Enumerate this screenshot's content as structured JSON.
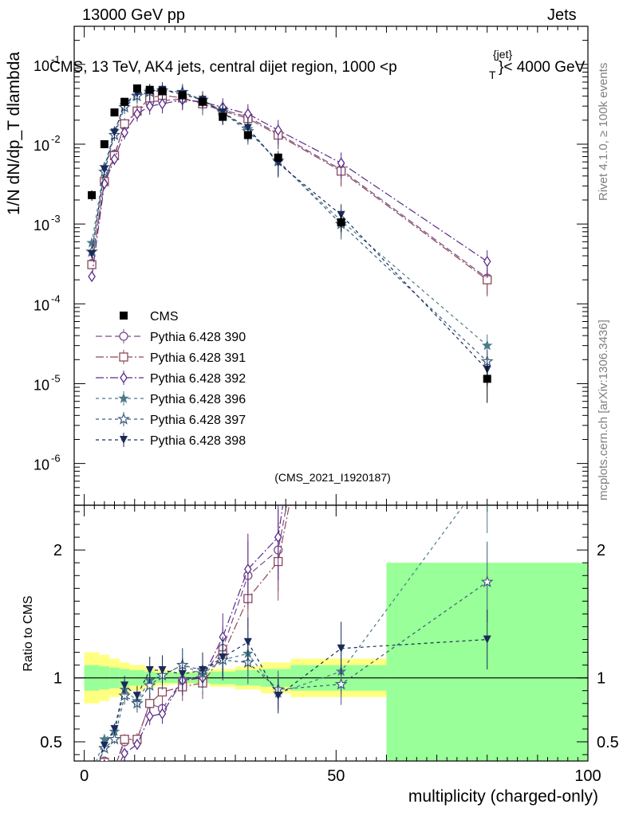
{
  "header": {
    "left": "13000 GeV pp",
    "right": "Jets"
  },
  "side_labels": {
    "rivet": "Rivet 4.1.0, ≥ 100k events",
    "mcplots": "mcplots.cern.ch [arXiv:1306.3436]"
  },
  "chart_data": {
    "type": "scatter",
    "title": "CMS, 13 TeV, AK4 jets, central dijet region, 1000 <p",
    "title_super": "{jet}",
    "title_sub": "T",
    "title_end": "}< 4000 GeV",
    "analysis_id": "(CMS_2021_I1920187)",
    "xlabel": "multiplicity (charged-only)",
    "ylabel_main": "1/N dN/dp_T dlambda",
    "ylabel_ratio": "Ratio to CMS",
    "xlim": [
      -2,
      100
    ],
    "x_ticks": [
      "0",
      "50",
      "100"
    ],
    "ylim_main": [
      3e-07,
      0.3
    ],
    "y_ticks_main": [
      "10^-6",
      "10^-5",
      "10^-4",
      "10^-3",
      "10^-2",
      "10^-1"
    ],
    "ylim_ratio": [
      0.35,
      2.35
    ],
    "y_ticks_ratio": [
      "0.5",
      "1",
      "2"
    ],
    "data": {
      "name": "CMS",
      "x": [
        1.5,
        4,
        6,
        8,
        10.5,
        13,
        15.5,
        19.5,
        23.5,
        27.5,
        32.5,
        38.5,
        51,
        80
      ],
      "y": [
        0.0023,
        0.01,
        0.025,
        0.034,
        0.05,
        0.048,
        0.046,
        0.041,
        0.034,
        0.022,
        0.013,
        0.0068,
        0.00105,
        1.15e-05
      ],
      "yerr_rel": [
        0.15,
        0.1,
        0.08,
        0.07,
        0.06,
        0.05,
        0.05,
        0.05,
        0.06,
        0.07,
        0.08,
        0.12,
        0.25,
        0.5
      ],
      "band_x_edges": [
        0,
        3,
        5,
        7,
        9,
        12,
        14,
        17,
        22,
        25,
        30,
        35,
        41,
        60,
        100
      ],
      "band_yellow_half": [
        0.2,
        0.18,
        0.15,
        0.12,
        0.1,
        0.08,
        0.06,
        0.05,
        0.05,
        0.07,
        0.09,
        0.12,
        0.15,
        0.9
      ],
      "band_green_half": [
        0.1,
        0.09,
        0.08,
        0.07,
        0.06,
        0.05,
        0.04,
        0.04,
        0.04,
        0.05,
        0.06,
        0.07,
        0.1,
        0.9
      ]
    },
    "series": [
      {
        "name": "Pythia 6.428 390",
        "color": "#7a4a8a",
        "marker": "circle-open",
        "dash": "8,4",
        "x": [
          1.5,
          4,
          6,
          8,
          10.5,
          13,
          15.5,
          19.5,
          23.5,
          27.5,
          32.5,
          38.5,
          51,
          80
        ],
        "y": [
          0.00032,
          0.0035,
          0.0075,
          0.017,
          0.026,
          0.034,
          0.035,
          0.037,
          0.033,
          0.027,
          0.022,
          0.0135,
          0.0048,
          0.00021
        ],
        "ratio": [
          0.14,
          0.35,
          0.3,
          0.5,
          0.52,
          0.8,
          0.76,
          0.98,
          1.02,
          1.23,
          1.8,
          2.0,
          4.6,
          18.0
        ]
      },
      {
        "name": "Pythia 6.428 391",
        "color": "#8a4a58",
        "marker": "square-open",
        "dash": "10,3,2,3",
        "x": [
          1.5,
          4,
          6,
          8,
          10.5,
          13,
          15.5,
          19.5,
          23.5,
          27.5,
          32.5,
          38.5,
          51,
          80
        ],
        "y": [
          0.00031,
          0.0034,
          0.0072,
          0.018,
          0.026,
          0.038,
          0.041,
          0.038,
          0.032,
          0.026,
          0.021,
          0.013,
          0.0046,
          0.0002
        ],
        "ratio": [
          0.13,
          0.34,
          0.29,
          0.52,
          0.52,
          0.8,
          0.89,
          0.93,
          0.96,
          1.18,
          1.62,
          1.91,
          4.4,
          17.0
        ]
      },
      {
        "name": "Pythia 6.428 392",
        "color": "#5a2a8a",
        "marker": "diamond-open",
        "dash": "10,3,2,3",
        "x": [
          1.5,
          4,
          6,
          8,
          10.5,
          13,
          15.5,
          19.5,
          23.5,
          27.5,
          32.5,
          38.5,
          51,
          80
        ],
        "y": [
          0.00022,
          0.0032,
          0.0065,
          0.014,
          0.024,
          0.03,
          0.032,
          0.036,
          0.034,
          0.029,
          0.024,
          0.015,
          0.0058,
          0.00034
        ],
        "ratio": [
          0.1,
          0.32,
          0.26,
          0.41,
          0.48,
          0.7,
          0.72,
          0.98,
          1.0,
          1.32,
          1.85,
          2.1,
          5.5,
          29.0
        ]
      },
      {
        "name": "Pythia 6.428 396",
        "color": "#4a7a8a",
        "marker": "star-filled",
        "dash": "4,4",
        "x": [
          1.5,
          4,
          6,
          8,
          10.5,
          13,
          15.5,
          19.5,
          23.5,
          27.5,
          32.5,
          38.5,
          51,
          80
        ],
        "y": [
          0.00058,
          0.0052,
          0.0145,
          0.031,
          0.041,
          0.047,
          0.047,
          0.045,
          0.035,
          0.025,
          0.0155,
          0.006,
          0.0011,
          3e-05
        ],
        "ratio": [
          0.25,
          0.52,
          0.58,
          0.91,
          0.82,
          0.98,
          1.02,
          1.1,
          1.03,
          1.14,
          1.19,
          0.88,
          1.05,
          2.6
        ]
      },
      {
        "name": "Pythia 6.428 397",
        "color": "#3a5a7a",
        "marker": "star-open",
        "dash": "4,4",
        "x": [
          1.5,
          4,
          6,
          8,
          10.5,
          13,
          15.5,
          19.5,
          23.5,
          27.5,
          32.5,
          38.5,
          51,
          80
        ],
        "y": [
          0.00045,
          0.0045,
          0.013,
          0.029,
          0.04,
          0.045,
          0.047,
          0.045,
          0.036,
          0.025,
          0.0145,
          0.0062,
          0.001,
          1.9e-05
        ],
        "ratio": [
          0.2,
          0.45,
          0.52,
          0.86,
          0.8,
          0.94,
          1.02,
          1.1,
          1.06,
          1.14,
          1.12,
          0.91,
          0.95,
          1.75
        ]
      },
      {
        "name": "Pythia 6.428 398",
        "color": "#1a2a5a",
        "marker": "triangle-down-filled",
        "dash": "4,4",
        "x": [
          1.5,
          4,
          6,
          8,
          10.5,
          13,
          15.5,
          19.5,
          23.5,
          27.5,
          32.5,
          38.5,
          51,
          80
        ],
        "y": [
          0.00042,
          0.0048,
          0.014,
          0.032,
          0.043,
          0.046,
          0.048,
          0.042,
          0.036,
          0.025,
          0.016,
          0.0058,
          0.0013,
          1.5e-05
        ],
        "ratio": [
          0.18,
          0.47,
          0.6,
          0.94,
          0.86,
          1.06,
          1.06,
          1.03,
          1.06,
          1.16,
          1.28,
          0.86,
          1.23,
          1.3
        ]
      }
    ]
  }
}
